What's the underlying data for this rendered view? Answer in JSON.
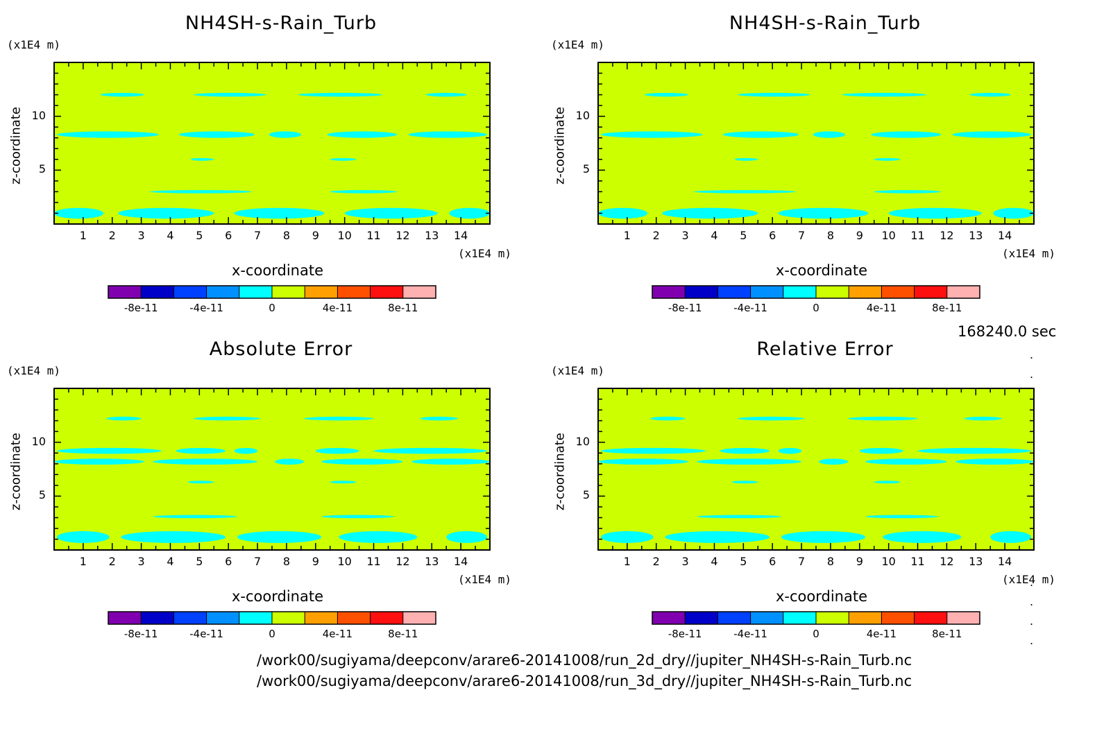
{
  "chart_data": [
    {
      "type": "heatmap",
      "title": "NH4SH-s-Rain_Turb",
      "xlabel": "x-coordinate",
      "ylabel": "z-coordinate",
      "x_unit": "(x1E4 m)",
      "y_unit": "(x1E4 m)",
      "xlim": [
        0,
        15
      ],
      "ylim": [
        0,
        15
      ],
      "x_ticks": [
        "1",
        "2",
        "3",
        "4",
        "5",
        "6",
        "7",
        "8",
        "9",
        "10",
        "11",
        "12",
        "13",
        "14"
      ],
      "y_ticks": [
        "5",
        "10"
      ],
      "colorbar": {
        "levels": [
          -1e-10,
          -8e-11,
          -6e-11,
          -4e-11,
          -2e-11,
          0,
          2e-11,
          4e-11,
          6e-11,
          8e-11,
          1e-10
        ],
        "colors": [
          "#8000b0",
          "#0000c8",
          "#0040ff",
          "#0090ff",
          "#00ffff",
          "#ccff00",
          "#ffa000",
          "#ff5000",
          "#ff1010",
          "#ffb0b0"
        ],
        "tick_labels": [
          "-8e-11",
          "-4e-11",
          "0",
          "4e-11",
          "8e-11"
        ]
      },
      "background_value": "#ccff00",
      "bands": [
        {
          "z": 12.0,
          "x": [
            [
              1.6,
              3.1
            ],
            [
              4.8,
              7.3
            ],
            [
              8.4,
              11.3
            ],
            [
              12.8,
              14.2
            ]
          ],
          "thick": 0.35
        },
        {
          "z": 8.3,
          "x": [
            [
              0.1,
              3.6
            ],
            [
              4.3,
              6.9
            ],
            [
              7.4,
              8.5
            ],
            [
              9.4,
              11.8
            ],
            [
              12.2,
              14.9
            ]
          ],
          "thick": 0.6
        },
        {
          "z": 6.0,
          "x": [
            [
              4.7,
              5.5
            ],
            [
              9.5,
              10.4
            ]
          ],
          "thick": 0.25
        },
        {
          "z": 3.0,
          "x": [
            [
              3.3,
              6.8
            ],
            [
              9.5,
              11.8
            ]
          ],
          "thick": 0.3
        },
        {
          "z": 1.0,
          "x": [
            [
              0,
              1.7
            ],
            [
              2.2,
              5.5
            ],
            [
              6.2,
              9.3
            ],
            [
              10.0,
              13.2
            ],
            [
              13.6,
              15
            ]
          ],
          "thick": 1.0
        }
      ]
    },
    {
      "type": "heatmap",
      "title": "NH4SH-s-Rain_Turb",
      "xlabel": "x-coordinate",
      "ylabel": "z-coordinate",
      "x_unit": "(x1E4 m)",
      "y_unit": "(x1E4 m)",
      "xlim": [
        0,
        15
      ],
      "ylim": [
        0,
        15
      ],
      "x_ticks": [
        "1",
        "2",
        "3",
        "4",
        "5",
        "6",
        "7",
        "8",
        "9",
        "10",
        "11",
        "12",
        "13",
        "14"
      ],
      "y_ticks": [
        "5",
        "10"
      ],
      "colorbar": {
        "levels": [
          -1e-10,
          -8e-11,
          -6e-11,
          -4e-11,
          -2e-11,
          0,
          2e-11,
          4e-11,
          6e-11,
          8e-11,
          1e-10
        ],
        "colors": [
          "#8000b0",
          "#0000c8",
          "#0040ff",
          "#0090ff",
          "#00ffff",
          "#ccff00",
          "#ffa000",
          "#ff5000",
          "#ff1010",
          "#ffb0b0"
        ],
        "tick_labels": [
          "-8e-11",
          "-4e-11",
          "0",
          "4e-11",
          "8e-11"
        ]
      },
      "background_value": "#ccff00",
      "bands": [
        {
          "z": 12.0,
          "x": [
            [
              1.6,
              3.1
            ],
            [
              4.8,
              7.3
            ],
            [
              8.4,
              11.3
            ],
            [
              12.8,
              14.2
            ]
          ],
          "thick": 0.35
        },
        {
          "z": 8.3,
          "x": [
            [
              0.1,
              3.6
            ],
            [
              4.3,
              6.9
            ],
            [
              7.4,
              8.5
            ],
            [
              9.4,
              11.8
            ],
            [
              12.2,
              14.9
            ]
          ],
          "thick": 0.6
        },
        {
          "z": 6.0,
          "x": [
            [
              4.7,
              5.5
            ],
            [
              9.5,
              10.4
            ]
          ],
          "thick": 0.25
        },
        {
          "z": 3.0,
          "x": [
            [
              3.3,
              6.8
            ],
            [
              9.5,
              11.8
            ]
          ],
          "thick": 0.3
        },
        {
          "z": 1.0,
          "x": [
            [
              0,
              1.7
            ],
            [
              2.2,
              5.5
            ],
            [
              6.2,
              9.3
            ],
            [
              10.0,
              13.2
            ],
            [
              13.6,
              15
            ]
          ],
          "thick": 1.0
        }
      ]
    },
    {
      "type": "heatmap",
      "title": "Absolute Error",
      "xlabel": "x-coordinate",
      "ylabel": "z-coordinate",
      "x_unit": "(x1E4 m)",
      "y_unit": "(x1E4 m)",
      "xlim": [
        0,
        15
      ],
      "ylim": [
        0,
        15
      ],
      "x_ticks": [
        "1",
        "2",
        "3",
        "4",
        "5",
        "6",
        "7",
        "8",
        "9",
        "10",
        "11",
        "12",
        "13",
        "14"
      ],
      "y_ticks": [
        "5",
        "10"
      ],
      "colorbar": {
        "levels": [
          -1e-10,
          -8e-11,
          -6e-11,
          -4e-11,
          -2e-11,
          0,
          2e-11,
          4e-11,
          6e-11,
          8e-11,
          1e-10
        ],
        "colors": [
          "#8000b0",
          "#0000c8",
          "#0040ff",
          "#0090ff",
          "#00ffff",
          "#ccff00",
          "#ffa000",
          "#ff5000",
          "#ff1010",
          "#ffb0b0"
        ],
        "tick_labels": [
          "-8e-11",
          "-4e-11",
          "0",
          "4e-11",
          "8e-11"
        ]
      },
      "background_value": "#ccff00",
      "bands": [
        {
          "z": 12.2,
          "x": [
            [
              1.8,
              3.0
            ],
            [
              4.8,
              7.1
            ],
            [
              8.6,
              11.0
            ],
            [
              12.6,
              13.9
            ]
          ],
          "thick": 0.35
        },
        {
          "z": 9.2,
          "x": [
            [
              0.1,
              3.7
            ],
            [
              4.2,
              5.9
            ],
            [
              6.2,
              7.0
            ],
            [
              9.0,
              10.5
            ],
            [
              11.0,
              14.9
            ]
          ],
          "thick": 0.55
        },
        {
          "z": 8.2,
          "x": [
            [
              0,
              3.1
            ],
            [
              3.4,
              7.0
            ],
            [
              7.6,
              8.6
            ],
            [
              9.2,
              12.0
            ],
            [
              12.3,
              15
            ]
          ],
          "thick": 0.55
        },
        {
          "z": 6.3,
          "x": [
            [
              4.6,
              5.5
            ],
            [
              9.5,
              10.4
            ]
          ],
          "thick": 0.25
        },
        {
          "z": 3.1,
          "x": [
            [
              3.4,
              6.3
            ],
            [
              9.2,
              11.7
            ]
          ],
          "thick": 0.3
        },
        {
          "z": 1.2,
          "x": [
            [
              0.1,
              1.9
            ],
            [
              2.3,
              5.9
            ],
            [
              6.3,
              9.2
            ],
            [
              9.8,
              12.5
            ],
            [
              13.5,
              14.9
            ]
          ],
          "thick": 1.1
        }
      ]
    },
    {
      "type": "heatmap",
      "title": "Relative Error",
      "xlabel": "x-coordinate",
      "ylabel": "z-coordinate",
      "x_unit": "(x1E4 m)",
      "y_unit": "(x1E4 m)",
      "xlim": [
        0,
        15
      ],
      "ylim": [
        0,
        15
      ],
      "x_ticks": [
        "1",
        "2",
        "3",
        "4",
        "5",
        "6",
        "7",
        "8",
        "9",
        "10",
        "11",
        "12",
        "13",
        "14"
      ],
      "y_ticks": [
        "5",
        "10"
      ],
      "colorbar": {
        "levels": [
          -1e-10,
          -8e-11,
          -6e-11,
          -4e-11,
          -2e-11,
          0,
          2e-11,
          4e-11,
          6e-11,
          8e-11,
          1e-10
        ],
        "colors": [
          "#8000b0",
          "#0000c8",
          "#0040ff",
          "#0090ff",
          "#00ffff",
          "#ccff00",
          "#ffa000",
          "#ff5000",
          "#ff1010",
          "#ffb0b0"
        ],
        "tick_labels": [
          "-8e-11",
          "-4e-11",
          "0",
          "4e-11",
          "8e-11"
        ]
      },
      "background_value": "#ccff00",
      "bands": [
        {
          "z": 12.2,
          "x": [
            [
              1.8,
              3.0
            ],
            [
              4.8,
              7.1
            ],
            [
              8.6,
              11.0
            ],
            [
              12.6,
              13.9
            ]
          ],
          "thick": 0.35
        },
        {
          "z": 9.2,
          "x": [
            [
              0.1,
              3.7
            ],
            [
              4.2,
              5.9
            ],
            [
              6.2,
              7.0
            ],
            [
              9.0,
              10.5
            ],
            [
              11.0,
              14.9
            ]
          ],
          "thick": 0.55
        },
        {
          "z": 8.2,
          "x": [
            [
              0,
              3.1
            ],
            [
              3.4,
              7.0
            ],
            [
              7.6,
              8.6
            ],
            [
              9.2,
              12.0
            ],
            [
              12.3,
              15
            ]
          ],
          "thick": 0.55
        },
        {
          "z": 6.3,
          "x": [
            [
              4.6,
              5.5
            ],
            [
              9.5,
              10.4
            ]
          ],
          "thick": 0.25
        },
        {
          "z": 3.1,
          "x": [
            [
              3.4,
              6.3
            ],
            [
              9.2,
              11.7
            ]
          ],
          "thick": 0.3
        },
        {
          "z": 1.2,
          "x": [
            [
              0.1,
              1.9
            ],
            [
              2.3,
              5.9
            ],
            [
              6.3,
              9.2
            ],
            [
              9.8,
              12.5
            ],
            [
              13.5,
              14.9
            ]
          ],
          "thick": 1.1
        }
      ]
    }
  ],
  "timestamp": "168240.0 sec",
  "file_paths": [
    "/work00/sugiyama/deepconv/arare6-20141008/run_2d_dry//jupiter_NH4SH-s-Rain_Turb.nc",
    "/work00/sugiyama/deepconv/arare6-20141008/run_3d_dry//jupiter_NH4SH-s-Rain_Turb.nc"
  ]
}
